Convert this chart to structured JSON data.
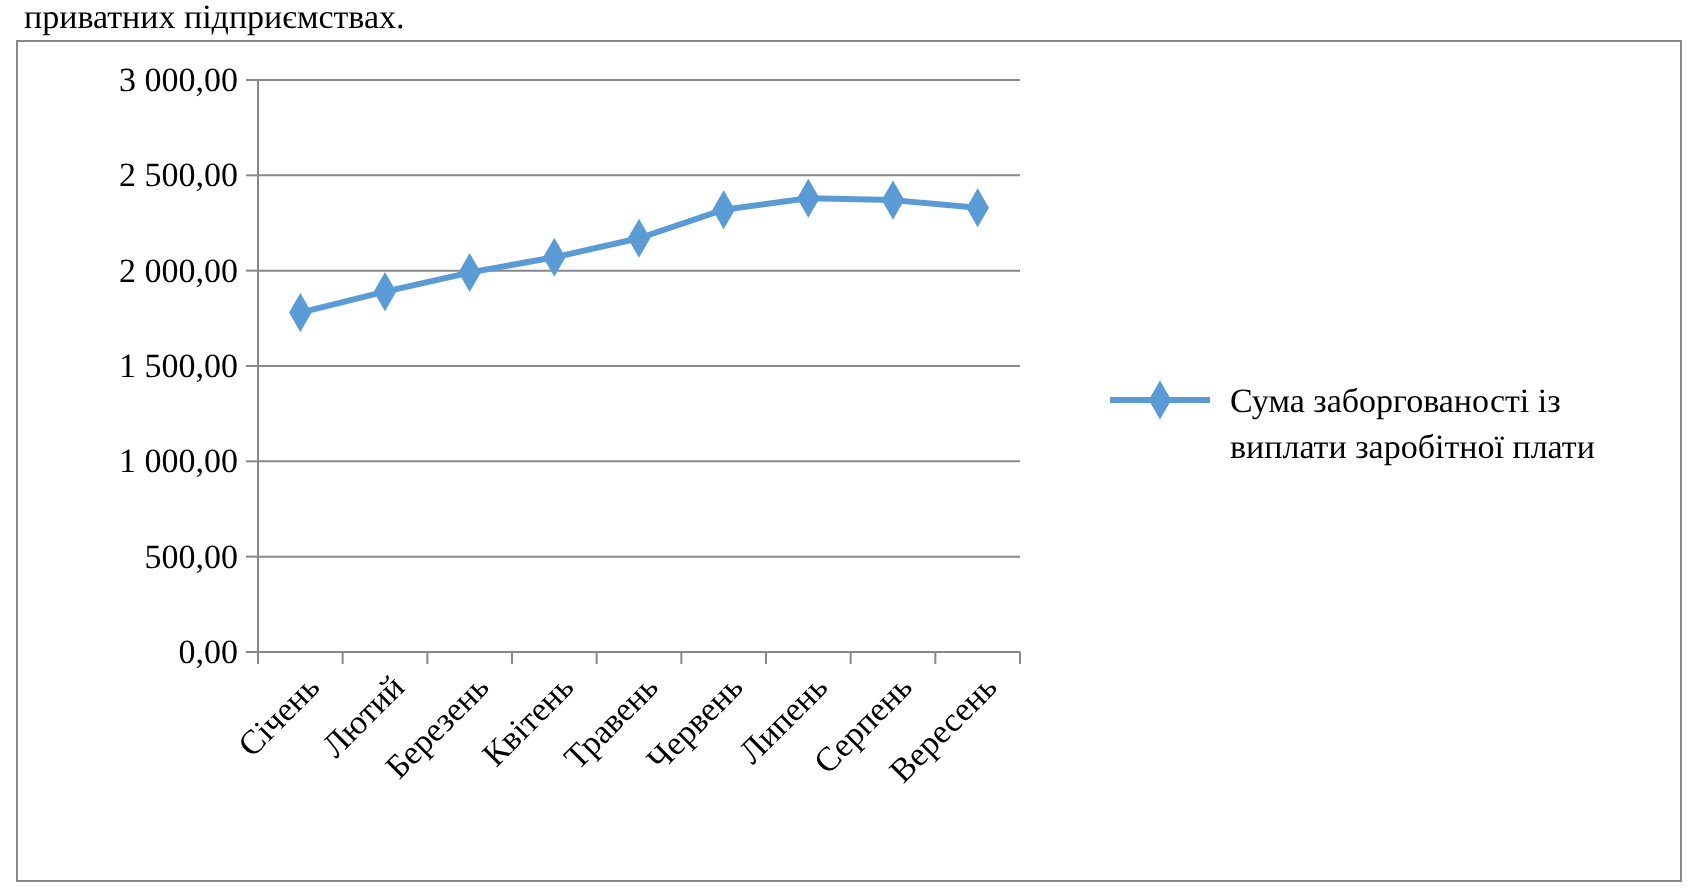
{
  "chart_data": {
    "type": "line",
    "annotations": [
      "приватних підприємствах."
    ],
    "categories": [
      "Січень",
      "Лютий",
      "Березень",
      "Квітень",
      "Травень",
      "Червень",
      "Липень",
      "Серпень",
      "Вересень"
    ],
    "series": [
      {
        "name": "Сума заборгованості із виплати заробітної плати",
        "color": "#5b9bd5",
        "values": [
          1780,
          1890,
          1990,
          2070,
          2170,
          2320,
          2380,
          2370,
          2330
        ]
      }
    ],
    "ylim": [
      0,
      3000
    ],
    "yticks": [
      {
        "value": 0,
        "label": "0,00"
      },
      {
        "value": 500,
        "label": "500,00"
      },
      {
        "value": 1000,
        "label": "1 000,00"
      },
      {
        "value": 1500,
        "label": "1 500,00"
      },
      {
        "value": 2000,
        "label": "2 000,00"
      },
      {
        "value": 2500,
        "label": "2 500,00"
      },
      {
        "value": 3000,
        "label": "3 000,00"
      }
    ],
    "grid": "y",
    "legend": "right",
    "marker": "diamond",
    "line_style": "solid"
  }
}
